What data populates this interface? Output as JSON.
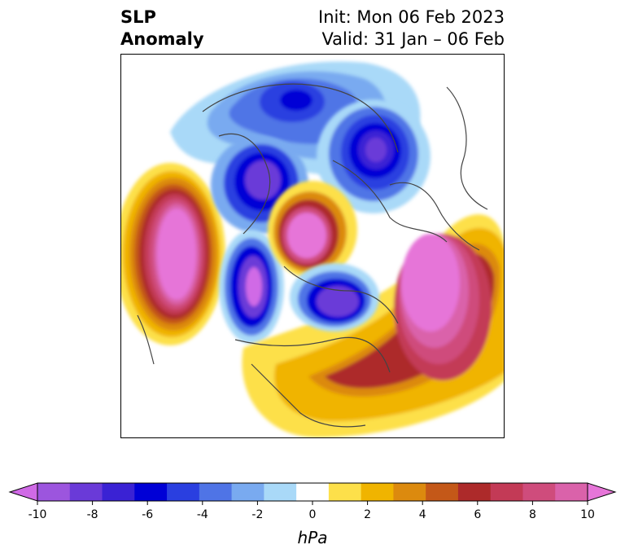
{
  "title": {
    "left_line1": "SLP",
    "left_line2": "Anomaly",
    "right_line1": "Init: Mon 06 Feb 2023",
    "right_line2": "Valid: 31 Jan – 06 Feb"
  },
  "colorbar": {
    "units": "hPa",
    "tick_labels": [
      "-10",
      "-8",
      "-6",
      "-4",
      "-2",
      "0",
      "2",
      "4",
      "6",
      "8",
      "10"
    ],
    "colors": [
      "#d06ae6",
      "#9c55de",
      "#6a3ad8",
      "#3a22d4",
      "#0000d6",
      "#2a3fe0",
      "#4f74e6",
      "#79aaf0",
      "#a9d9f8",
      "#ffffff",
      "#fde04a",
      "#f0b400",
      "#dc8a0e",
      "#c45818",
      "#ad2a2a",
      "#c33a56",
      "#cf4c7c",
      "#da62aa",
      "#e675d8"
    ],
    "range": [
      -10,
      10
    ],
    "extend": "both"
  },
  "map": {
    "projection": "polar-stereographic (north)",
    "variable": "SLP anomaly"
  }
}
